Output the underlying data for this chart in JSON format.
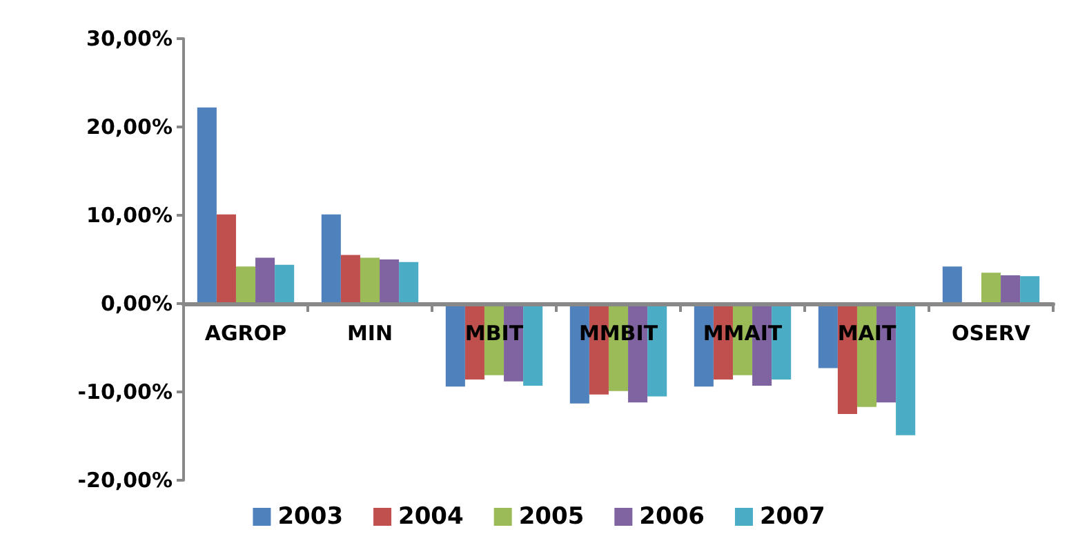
{
  "chart_data": {
    "type": "bar",
    "categories": [
      "AGROP",
      "MIN",
      "MBIT",
      "MMBIT",
      "MMAIT",
      "MAIT",
      "OSERV"
    ],
    "series": [
      {
        "name": "2003",
        "color": "#4f81bd",
        "values": [
          22.2,
          10.1,
          -9.4,
          -11.3,
          -9.4,
          -7.3,
          4.2
        ]
      },
      {
        "name": "2004",
        "color": "#c0504d",
        "values": [
          10.1,
          5.5,
          -8.6,
          -10.3,
          -8.6,
          -12.5,
          null
        ]
      },
      {
        "name": "2005",
        "color": "#9bbb59",
        "values": [
          4.2,
          5.2,
          -8.1,
          -9.9,
          -8.1,
          -11.7,
          3.5
        ]
      },
      {
        "name": "2006",
        "color": "#8064a2",
        "values": [
          5.2,
          5.0,
          -8.8,
          -11.2,
          -9.3,
          -11.2,
          3.2
        ]
      },
      {
        "name": "2007",
        "color": "#4bacc6",
        "values": [
          4.4,
          4.7,
          -9.3,
          -10.5,
          -8.6,
          -14.9,
          3.1
        ]
      }
    ],
    "ylim": [
      -20,
      30
    ],
    "yticks": [
      {
        "value": -20,
        "label": "-20,00%"
      },
      {
        "value": -10,
        "label": "-10,00%"
      },
      {
        "value": 0,
        "label": "0,00%"
      },
      {
        "value": 10,
        "label": "10,00%"
      },
      {
        "value": 20,
        "label": "20,00%"
      },
      {
        "value": 30,
        "label": "30,00%"
      }
    ],
    "grid": false,
    "legend": "bottom"
  }
}
